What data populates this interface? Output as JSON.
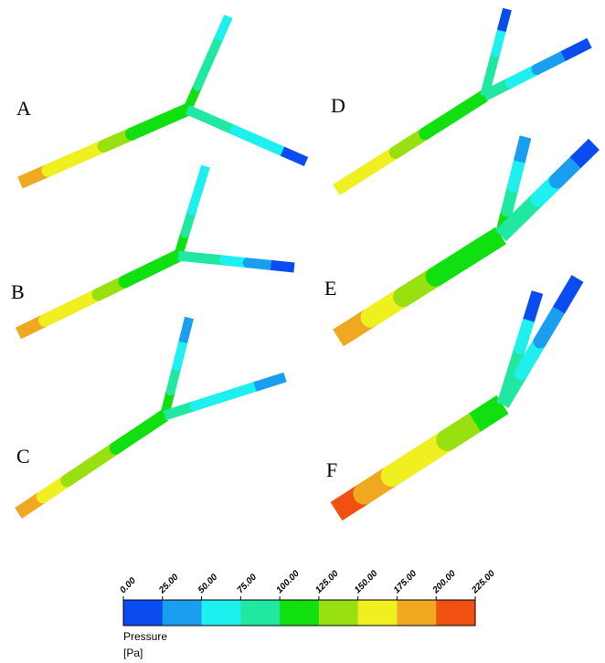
{
  "panels": [
    {
      "label": "A"
    },
    {
      "label": "B"
    },
    {
      "label": "C"
    },
    {
      "label": "D"
    },
    {
      "label": "E"
    },
    {
      "label": "F"
    }
  ],
  "colorbar": {
    "ticks": [
      "0.00",
      "25.00",
      "50.00",
      "75.00",
      "100.00",
      "125.00",
      "150.00",
      "175.00",
      "200.00",
      "225.00"
    ],
    "colors": [
      "#0a4cf0",
      "#1a9ef0",
      "#1ef0f0",
      "#20e8a0",
      "#10e010",
      "#98e010",
      "#f0f020",
      "#f0a820",
      "#f05010"
    ],
    "title": "Pressure",
    "unit": "[Pa]"
  }
}
